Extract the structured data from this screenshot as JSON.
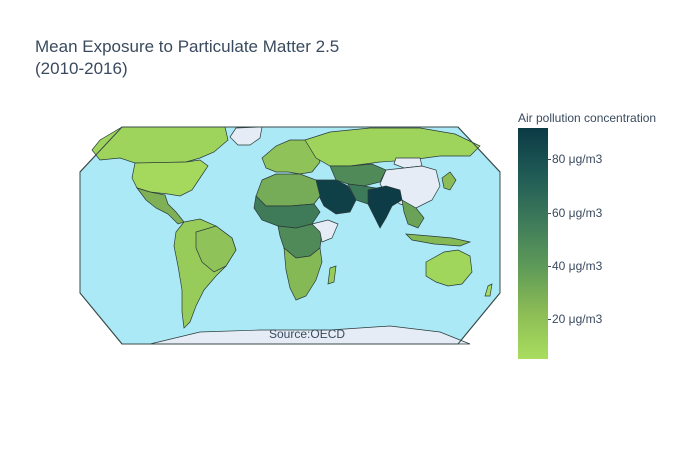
{
  "title": {
    "line1": "Mean Exposure to Particulate Matter 2.5",
    "line2": "(2010-2016)"
  },
  "annotation": "Source:OECD",
  "colorbar": {
    "title": "Air pollution concentration",
    "ticks": [
      "80 μg/m3",
      "60 μg/m3",
      "40 μg/m3",
      "20 μg/m3"
    ],
    "tick_values": [
      80,
      60,
      40,
      20
    ],
    "range": [
      4,
      92
    ],
    "colors": [
      "#a9dd5f",
      "#8cbc55",
      "#5e9a58",
      "#3d7a5a",
      "#1f5a55",
      "#0b3a45"
    ]
  },
  "map": {
    "projection": "robinson",
    "ocean_color": "#aae9f5",
    "missing_color": "#e5ecf6",
    "border_color": "#2a3a3a"
  }
}
